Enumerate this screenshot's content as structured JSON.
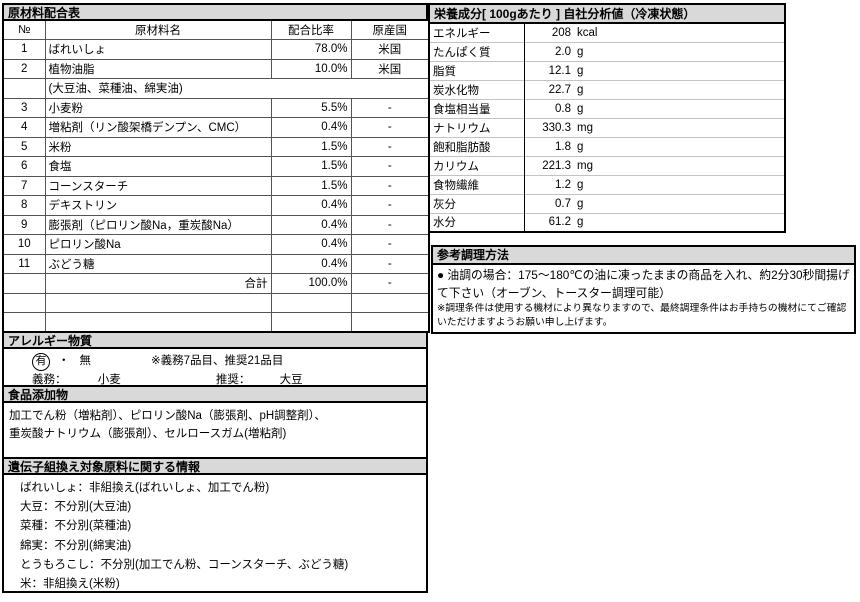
{
  "colors": {
    "title_bar_bg": "#d9d9d9",
    "border": "#000000",
    "nutrition_row_line": "#c3c3c3"
  },
  "ingredient_table": {
    "title": "原材料配合表",
    "headers": {
      "no": "№",
      "name": "原材料名",
      "ratio": "配合比率",
      "origin": "原産国"
    },
    "rows": [
      {
        "no": "1",
        "name": "ばれいしょ",
        "ratio": "78.0%",
        "origin": "米国"
      },
      {
        "no": "2",
        "name": "植物油脂",
        "ratio": "10.0%",
        "origin": "米国"
      },
      {
        "no": "",
        "name": "(大豆油、菜種油、綿実油)",
        "ratio": "",
        "origin": "",
        "merged": true
      },
      {
        "no": "3",
        "name": "小麦粉",
        "ratio": "5.5%",
        "origin": "-"
      },
      {
        "no": "4",
        "name": "増粘剤（リン酸架橋デンプン、CMC）",
        "ratio": "0.4%",
        "origin": "-"
      },
      {
        "no": "5",
        "name": "米粉",
        "ratio": "1.5%",
        "origin": "-"
      },
      {
        "no": "6",
        "name": "食塩",
        "ratio": "1.5%",
        "origin": "-"
      },
      {
        "no": "7",
        "name": "コーンスターチ",
        "ratio": "1.5%",
        "origin": "-"
      },
      {
        "no": "8",
        "name": "デキストリン",
        "ratio": "0.4%",
        "origin": "-"
      },
      {
        "no": "9",
        "name": "膨張剤（ピロリン酸Na，重炭酸Na）",
        "ratio": "0.4%",
        "origin": "-"
      },
      {
        "no": "10",
        "name": "ピロリン酸Na",
        "ratio": "0.4%",
        "origin": "-"
      },
      {
        "no": "11",
        "name": "ぶどう糖",
        "ratio": "0.4%",
        "origin": "-"
      },
      {
        "no": "",
        "name": "合計",
        "ratio": "100.0%",
        "origin": "-",
        "total": true
      },
      {
        "no": "",
        "name": "",
        "ratio": "",
        "origin": ""
      },
      {
        "no": "",
        "name": "",
        "ratio": "",
        "origin": ""
      }
    ]
  },
  "allergen": {
    "title": "アレルギー物質",
    "option_yes": "有",
    "separator": "・",
    "option_no": "無",
    "note": "※義務7品目、推奨21品目",
    "mandatory_label": "義務：",
    "mandatory_value": "小麦",
    "recommended_label": "推奨：",
    "recommended_value": "大豆"
  },
  "additives": {
    "title": "食品添加物",
    "lines": [
      "加工でん粉（増粘剤）、ピロリン酸Na（膨張剤、pH調整剤）、",
      "重炭酸ナトリウム（膨張剤）、セルロースガム(増粘剤)"
    ]
  },
  "gmo": {
    "title": "遺伝子組換え対象原料に関する情報",
    "lines": [
      "ばれいしょ：非組換え(ばれいしょ、加工でん粉)",
      "大豆：不分別(大豆油)",
      "菜種：不分別(菜種油)",
      "綿実：不分別(綿実油)",
      "とうもろこし：不分別(加工でん粉、コーンスターチ、ぶどう糖)",
      "米：非組換え(米粉)"
    ]
  },
  "nutrition": {
    "title": "栄養成分[ 100gあたり ] 自社分析値（冷凍状態）",
    "rows": [
      {
        "label": "エネルギー",
        "value": "208",
        "unit": "kcal"
      },
      {
        "label": "たんぱく質",
        "value": "2.0",
        "unit": "g"
      },
      {
        "label": "脂質",
        "value": "12.1",
        "unit": "g"
      },
      {
        "label": "炭水化物",
        "value": "22.7",
        "unit": "g"
      },
      {
        "label": "食塩相当量",
        "value": "0.8",
        "unit": "g"
      },
      {
        "label": "ナトリウム",
        "value": "330.3",
        "unit": "mg"
      },
      {
        "label": "飽和脂肪酸",
        "value": "1.8",
        "unit": "g"
      },
      {
        "label": "カリウム",
        "value": "221.3",
        "unit": "mg"
      },
      {
        "label": "食物繊維",
        "value": "1.2",
        "unit": "g"
      },
      {
        "label": "灰分",
        "value": "0.7",
        "unit": "g"
      },
      {
        "label": "水分",
        "value": "61.2",
        "unit": "g"
      }
    ]
  },
  "cooking": {
    "title": "参考調理方法",
    "bullet": "● 油調の場合：175～180℃の油に凍ったままの商品を入れ、約2分30秒間揚げて下さい（オーブン、トースター調理可能）",
    "note": "※調理条件は使用する機材により異なりますので、最終調理条件はお手持ちの機材にてご確認いただけますようお願い申し上げます。"
  }
}
